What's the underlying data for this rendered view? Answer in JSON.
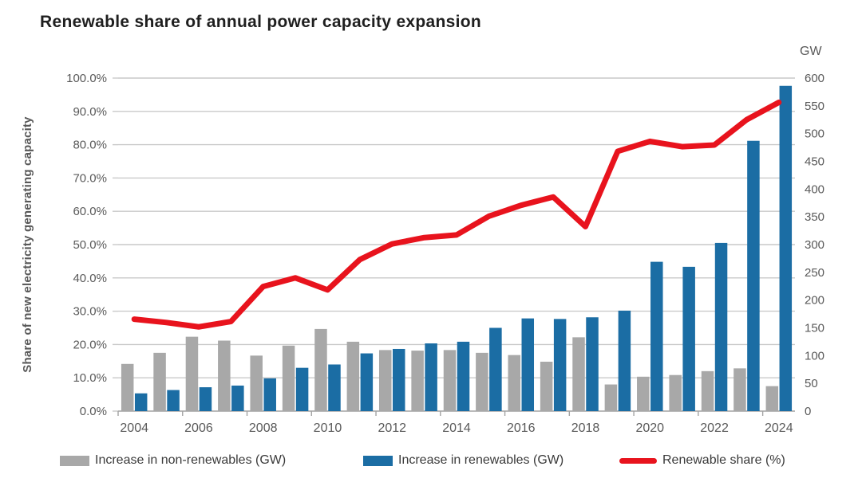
{
  "colors": {
    "background": "#ffffff",
    "title_text": "#1f1f1f",
    "axis_text": "#595959",
    "legend_text": "#3a3a3a",
    "gridline": "#c9c9c9",
    "axis_line": "#a3a3a3",
    "bar_gray": "#a8a8a8",
    "bar_blue": "#1b6da4",
    "line_red": "#e8131d"
  },
  "legend": [
    {
      "label": "Increase in non-renewables (GW)",
      "swatch": "bar_gray"
    },
    {
      "label": "Increase in renewables (GW)",
      "swatch": "bar_blue"
    },
    {
      "label": "Renewable share (%)",
      "swatch": "line_red"
    }
  ],
  "chart_data": {
    "type": "bar",
    "title": "Renewable share of annual power capacity expansion",
    "categories": [
      "2004",
      "2005",
      "2006",
      "2007",
      "2008",
      "2009",
      "2010",
      "2011",
      "2012",
      "2013",
      "2014",
      "2015",
      "2016",
      "2017",
      "2018",
      "2019",
      "2020",
      "2021",
      "2022",
      "2023",
      "2024"
    ],
    "x_tick_labels": [
      "2004",
      "2006",
      "2008",
      "2010",
      "2012",
      "2014",
      "2016",
      "2018",
      "2020",
      "2022",
      "2024"
    ],
    "series": [
      {
        "name": "Increase in non-renewables (GW)",
        "type": "bar",
        "axis": "right",
        "color_key": "bar_gray",
        "values": [
          85,
          105,
          134,
          127,
          100,
          118,
          148,
          125,
          110,
          109,
          110,
          105,
          101,
          89,
          133,
          48,
          62,
          65,
          72,
          77,
          45
        ]
      },
      {
        "name": "Increase in renewables (GW)",
        "type": "bar",
        "axis": "right",
        "color_key": "bar_blue",
        "values": [
          32,
          38,
          43,
          46,
          59,
          78,
          84,
          104,
          112,
          122,
          125,
          150,
          167,
          166,
          169,
          181,
          269,
          260,
          303,
          487,
          586
        ]
      },
      {
        "name": "Renewable share (%)",
        "type": "line",
        "axis": "left",
        "color_key": "line_red",
        "values": [
          27.6,
          26.6,
          25.3,
          26.9,
          37.4,
          40.0,
          36.4,
          45.5,
          50.2,
          52.1,
          52.9,
          58.5,
          61.8,
          64.3,
          55.4,
          78.0,
          81.0,
          79.4,
          79.9,
          87.5,
          92.7
        ]
      }
    ],
    "left_axis": {
      "label": "Share of new electricity generating capacity",
      "min": 0,
      "max": 100,
      "step": 10,
      "unit": "%",
      "tick_values": [
        0,
        10,
        20,
        30,
        40,
        50,
        60,
        70,
        80,
        90,
        100
      ],
      "tick_labels": [
        "0.0%",
        "10.0%",
        "20.0%",
        "30.0%",
        "40.0%",
        "50.0%",
        "60.0%",
        "70.0%",
        "80.0%",
        "90.0%",
        "100.0%"
      ]
    },
    "right_axis": {
      "label": "GW",
      "min": 0,
      "max": 600,
      "step": 50,
      "tick_values": [
        0,
        50,
        100,
        150,
        200,
        250,
        300,
        350,
        400,
        450,
        500,
        550,
        600
      ],
      "tick_labels": [
        "0",
        "50",
        "100",
        "150",
        "200",
        "250",
        "300",
        "350",
        "400",
        "450",
        "500",
        "550",
        "600"
      ]
    },
    "grid": "horizontal only, at every 10% of left axis",
    "legend_position": "bottom"
  }
}
